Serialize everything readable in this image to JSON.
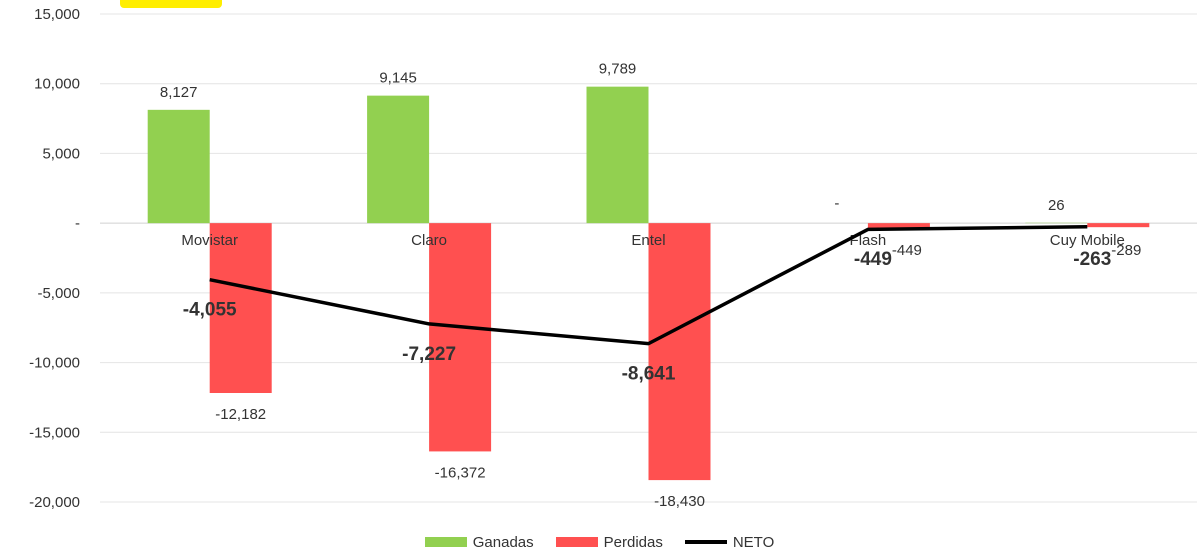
{
  "chart_data": {
    "type": "bar",
    "categories": [
      "Movistar",
      "Claro",
      "Entel",
      "Flash",
      "Cuy Mobile"
    ],
    "series": [
      {
        "name": "Ganadas",
        "kind": "bar",
        "color": "#92d050",
        "values": [
          8127,
          9145,
          9789,
          0,
          26
        ],
        "labels": [
          "8,127",
          "9,145",
          "9,789",
          "-",
          "26"
        ]
      },
      {
        "name": "Perdidas",
        "kind": "bar",
        "color": "#ff5050",
        "values": [
          -12182,
          -16372,
          -18430,
          -449,
          -289
        ],
        "labels": [
          "-12,182",
          "-16,372",
          "-18,430",
          "-449",
          "-289"
        ]
      },
      {
        "name": "NETO",
        "kind": "line",
        "color": "#000000",
        "values": [
          -4055,
          -7227,
          -8641,
          -449,
          -263
        ],
        "labels": [
          "-4,055",
          "-7,227",
          "-8,641",
          "-449",
          "-263"
        ]
      }
    ],
    "ylim": [
      -20000,
      15000
    ],
    "yticks": [
      15000,
      10000,
      5000,
      0,
      -5000,
      -10000,
      -15000,
      -20000
    ],
    "ytick_labels": [
      "15,000",
      "10,000",
      "5,000",
      "-",
      "-5,000",
      "-10,000",
      "-15,000",
      "-20,000"
    ],
    "grid": true,
    "legend_position": "bottom"
  }
}
